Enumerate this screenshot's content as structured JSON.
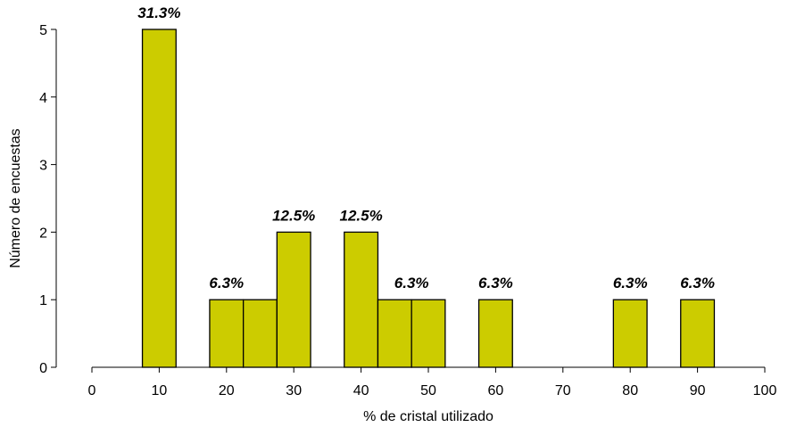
{
  "chart_data": {
    "type": "bar",
    "title": "",
    "xlabel": "% de cristal utilizado",
    "ylabel": "Número de encuestas",
    "xlim": [
      0,
      100
    ],
    "ylim": [
      0,
      5
    ],
    "xticks": [
      0,
      10,
      20,
      30,
      40,
      50,
      60,
      70,
      80,
      90,
      100
    ],
    "yticks": [
      0,
      1,
      2,
      3,
      4,
      5
    ],
    "bar_width": 5,
    "bar_color": "#cccc00",
    "bar_edge_color": "#000000",
    "grid": false,
    "legend": "none",
    "bars": [
      {
        "x": 10,
        "value": 5
      },
      {
        "x": 20,
        "value": 1
      },
      {
        "x": 25,
        "value": 1
      },
      {
        "x": 30,
        "value": 2
      },
      {
        "x": 40,
        "value": 2
      },
      {
        "x": 45,
        "value": 1
      },
      {
        "x": 50,
        "value": 1
      },
      {
        "x": 60,
        "value": 1
      },
      {
        "x": 80,
        "value": 1
      },
      {
        "x": 90,
        "value": 1
      }
    ],
    "annotations": [
      {
        "x": 10,
        "y": 5,
        "text": "31.3%"
      },
      {
        "x": 20,
        "y": 1,
        "text": "6.3%"
      },
      {
        "x": 30,
        "y": 2,
        "text": "12.5%"
      },
      {
        "x": 40,
        "y": 2,
        "text": "12.5%"
      },
      {
        "x": 47.5,
        "y": 1,
        "text": "6.3%"
      },
      {
        "x": 60,
        "y": 1,
        "text": "6.3%"
      },
      {
        "x": 80,
        "y": 1,
        "text": "6.3%"
      },
      {
        "x": 90,
        "y": 1,
        "text": "6.3%"
      }
    ]
  }
}
